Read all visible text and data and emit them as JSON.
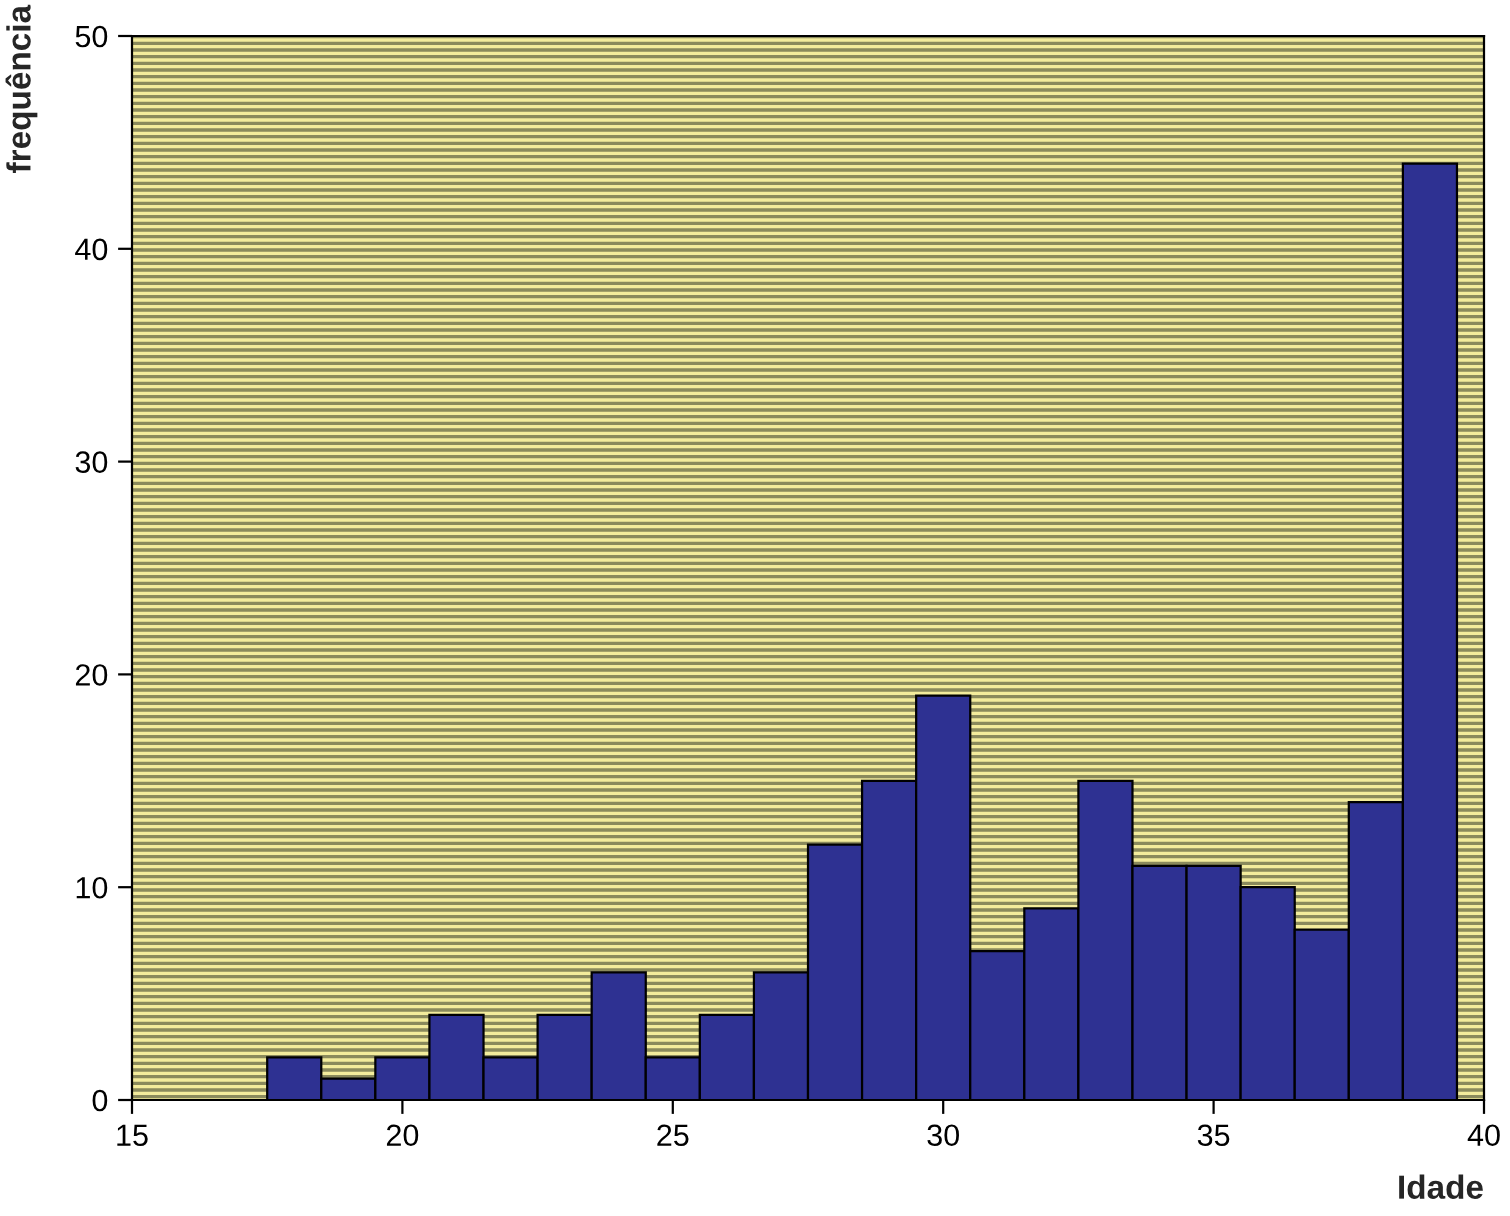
{
  "chart_data": {
    "type": "histogram",
    "xlabel": "Idade",
    "ylabel": "frequência",
    "bins": [
      17.5,
      18.5,
      19.5,
      20.5,
      21.5,
      22.5,
      23.5,
      24.5,
      25.5,
      26.5,
      27.5,
      28.5,
      29.5,
      30.5,
      31.5,
      32.5,
      33.5,
      34.5,
      35.5,
      36.5,
      37.5,
      38.5,
      39.5
    ],
    "values": [
      2,
      1,
      2,
      4,
      2,
      4,
      6,
      2,
      4,
      6,
      12,
      15,
      19,
      7,
      9,
      15,
      11,
      11,
      10,
      8,
      14,
      44
    ],
    "color": "#2e3192",
    "xlim": [
      15,
      40
    ],
    "xticks": [
      15,
      20,
      25,
      30,
      35,
      40
    ],
    "ylim": [
      0,
      50
    ],
    "yticks": [
      0,
      10,
      20,
      30,
      40,
      50
    ]
  }
}
